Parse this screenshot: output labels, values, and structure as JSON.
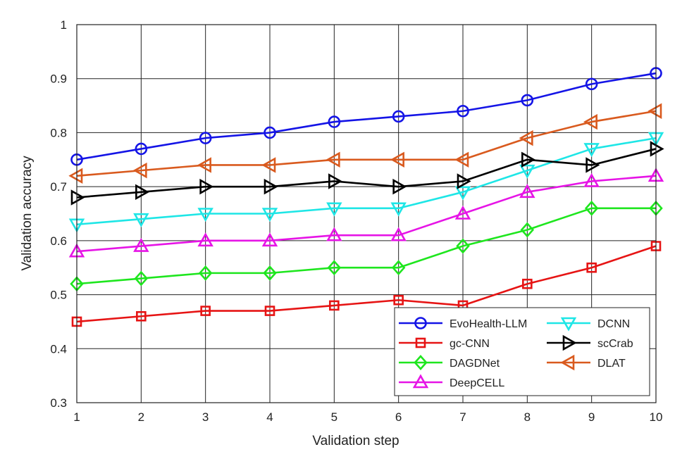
{
  "chart_data": {
    "type": "line",
    "title": "",
    "xlabel": "Validation step",
    "ylabel": "Validation accuracy",
    "x": [
      1,
      2,
      3,
      4,
      5,
      6,
      7,
      8,
      9,
      10
    ],
    "xlim": [
      1,
      10
    ],
    "ylim": [
      0.3,
      1
    ],
    "xticks": [
      "1",
      "2",
      "3",
      "4",
      "5",
      "6",
      "7",
      "8",
      "9",
      "10"
    ],
    "yticks": [
      "0.3",
      "0.4",
      "0.5",
      "0.6",
      "0.7",
      "0.8",
      "0.9",
      "1"
    ],
    "ytick_values": [
      0.3,
      0.4,
      0.5,
      0.6,
      0.7,
      0.8,
      0.9,
      1.0
    ],
    "grid": true,
    "legend_position": "bottom-right",
    "series": [
      {
        "name": "EvoHealth-LLM",
        "color": "#1414e6",
        "marker": "circle",
        "values": [
          0.75,
          0.77,
          0.79,
          0.8,
          0.82,
          0.83,
          0.84,
          0.86,
          0.89,
          0.91
        ]
      },
      {
        "name": "gc-CNN",
        "color": "#e61414",
        "marker": "square",
        "values": [
          0.45,
          0.46,
          0.47,
          0.47,
          0.48,
          0.49,
          0.48,
          0.52,
          0.55,
          0.59
        ]
      },
      {
        "name": "DAGDNet",
        "color": "#1ee61e",
        "marker": "diamond",
        "values": [
          0.52,
          0.53,
          0.54,
          0.54,
          0.55,
          0.55,
          0.59,
          0.62,
          0.66,
          0.66
        ]
      },
      {
        "name": "DeepCELL",
        "color": "#e614e6",
        "marker": "triangle-up",
        "values": [
          0.58,
          0.59,
          0.6,
          0.6,
          0.61,
          0.61,
          0.65,
          0.69,
          0.71,
          0.72
        ]
      },
      {
        "name": "DCNN",
        "color": "#1ee6e6",
        "marker": "triangle-down",
        "values": [
          0.63,
          0.64,
          0.65,
          0.65,
          0.66,
          0.66,
          0.69,
          0.73,
          0.77,
          0.79
        ]
      },
      {
        "name": "scCrab",
        "color": "#000000",
        "marker": "triangle-right",
        "values": [
          0.68,
          0.69,
          0.7,
          0.7,
          0.71,
          0.7,
          0.71,
          0.75,
          0.74,
          0.77
        ]
      },
      {
        "name": "DLAT",
        "color": "#d95a1e",
        "marker": "triangle-left",
        "values": [
          0.72,
          0.73,
          0.74,
          0.74,
          0.75,
          0.75,
          0.75,
          0.79,
          0.82,
          0.84
        ]
      }
    ]
  }
}
